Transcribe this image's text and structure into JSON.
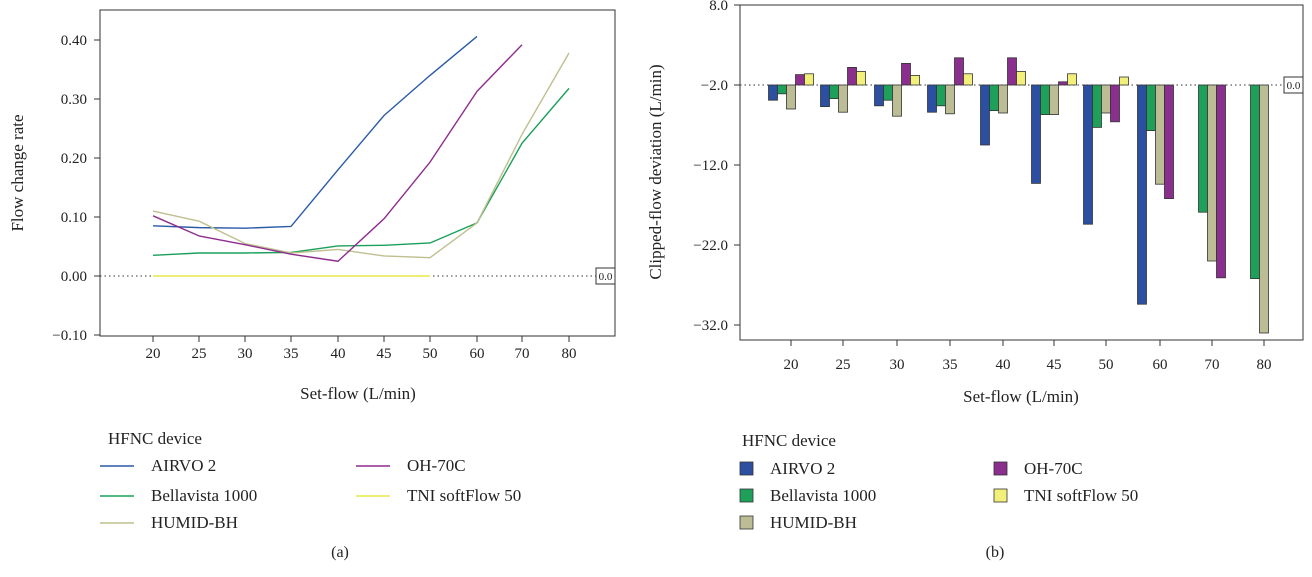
{
  "chart_data": [
    {
      "type": "line",
      "panel_label": "(a)",
      "xlabel": "Set-flow (L/min)",
      "ylabel": "Flow change rate",
      "categories": [
        "20",
        "25",
        "30",
        "35",
        "40",
        "45",
        "50",
        "60",
        "70",
        "80"
      ],
      "yticks": [
        "0.40",
        "0.30",
        "0.20",
        "0.10",
        "0.00",
        "−0.10"
      ],
      "ylim": [
        -0.1,
        0.43
      ],
      "reference_line": {
        "value": 0.0,
        "label": "0.0"
      },
      "legend_title": "HFNC device",
      "series": [
        {
          "name": "AIRVO 2",
          "color": "#2b5aa8",
          "values": [
            0.085,
            0.082,
            0.081,
            0.084,
            0.18,
            0.272,
            0.34,
            0.406,
            null,
            null
          ]
        },
        {
          "name": "Bellavista 1000",
          "color": "#1aa05a",
          "values": [
            0.035,
            0.039,
            0.039,
            0.04,
            0.051,
            0.052,
            0.056,
            0.09,
            0.225,
            0.318
          ]
        },
        {
          "name": "HUMID-BH",
          "color": "#bfbf8f",
          "values": [
            0.11,
            0.093,
            0.055,
            0.039,
            0.045,
            0.034,
            0.031,
            0.09,
            0.24,
            0.378
          ]
        },
        {
          "name": "OH-70C",
          "color": "#8e2d8e",
          "values": [
            0.102,
            0.068,
            0.053,
            0.037,
            0.025,
            0.097,
            0.193,
            0.313,
            0.392,
            null
          ]
        },
        {
          "name": "TNI softFlow 50",
          "color": "#e8e84a",
          "values": [
            0.0,
            0.0,
            0.0,
            0.0,
            0.0,
            0.0,
            0.0,
            null,
            null,
            null
          ]
        }
      ]
    },
    {
      "type": "bar",
      "panel_label": "(b)",
      "xlabel": "Set-flow (L/min)",
      "ylabel": "Clipped-flow deviation (L/min)",
      "categories": [
        "20",
        "25",
        "30",
        "35",
        "40",
        "45",
        "50",
        "60",
        "70",
        "80"
      ],
      "yticks": [
        "8.0",
        "−2.0",
        "−12.0",
        "−22.0",
        "−32.0"
      ],
      "ylim": [
        -32.0,
        8.0
      ],
      "reference_line": {
        "value": 0.0,
        "label": "0.0"
      },
      "legend_title": "HFNC device",
      "series": [
        {
          "name": "AIRVO 2",
          "color": "#2d4fa2",
          "values": [
            -1.9,
            -2.7,
            -2.6,
            -3.4,
            -7.5,
            -12.3,
            -17.4,
            -27.4,
            null,
            null
          ]
        },
        {
          "name": "Bellavista 1000",
          "color": "#1fa05a",
          "values": [
            -1.1,
            -1.7,
            -1.9,
            -2.6,
            -3.2,
            -3.7,
            -5.3,
            -5.7,
            -15.9,
            -24.2
          ]
        },
        {
          "name": "HUMID-BH",
          "color": "#bdbd95",
          "values": [
            -3.0,
            -3.4,
            -3.9,
            -3.6,
            -3.5,
            -3.7,
            -3.5,
            -12.4,
            -22.0,
            -31.0
          ]
        },
        {
          "name": "OH-70C",
          "color": "#8b2f8f",
          "values": [
            1.3,
            2.2,
            2.7,
            3.4,
            3.4,
            0.4,
            -4.6,
            -14.2,
            -24.1,
            null
          ]
        },
        {
          "name": "TNI softFlow 50",
          "color": "#f2f07a",
          "values": [
            1.4,
            1.7,
            1.2,
            1.4,
            1.7,
            1.4,
            1.0,
            null,
            null,
            null
          ]
        }
      ]
    }
  ]
}
